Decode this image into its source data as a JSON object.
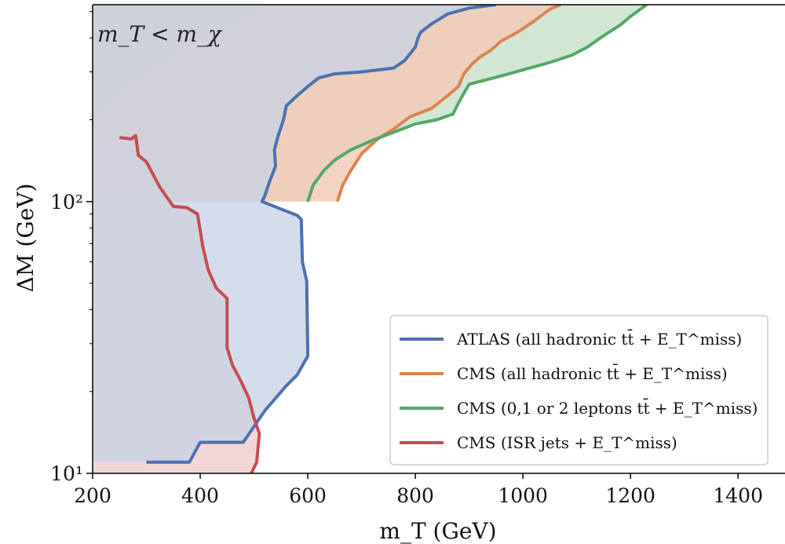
{
  "chart_data": {
    "type": "area",
    "xlabel": "m_T (GeV)",
    "ylabel": "ΔM (GeV)",
    "xlim": [
      200,
      1480
    ],
    "ylim": [
      10,
      530
    ],
    "yscale": "log",
    "x_ticks": [
      200,
      400,
      600,
      800,
      1000,
      1200,
      1400
    ],
    "x_tick_labels": [
      "200",
      "400",
      "600",
      "800",
      "1000",
      "1200",
      "1400"
    ],
    "y_ticks": [
      10,
      100
    ],
    "y_tick_labels": [
      "10¹",
      "10²"
    ],
    "annotation": {
      "text": "m_T < m_χ",
      "fill": "#d3d3d3"
    },
    "legend_placement": "lower-right",
    "grid": false,
    "series": [
      {
        "name": "ATLAS (all hadronic tt̄ + E_T^miss)",
        "color": "#4c72b0",
        "fill": "#c5d1e6",
        "points": [
          [
            300,
            11
          ],
          [
            380,
            11
          ],
          [
            400,
            13
          ],
          [
            480,
            13
          ],
          [
            520,
            17
          ],
          [
            560,
            21
          ],
          [
            580,
            23
          ],
          [
            600,
            27
          ],
          [
            598,
            51
          ],
          [
            590,
            60
          ],
          [
            588,
            86
          ],
          [
            580,
            89
          ],
          [
            515,
            100
          ],
          [
            520,
            105
          ],
          [
            530,
            120
          ],
          [
            540,
            135
          ],
          [
            538,
            155
          ],
          [
            545,
            175
          ],
          [
            555,
            200
          ],
          [
            560,
            225
          ],
          [
            580,
            245
          ],
          [
            600,
            265
          ],
          [
            620,
            285
          ],
          [
            650,
            295
          ],
          [
            700,
            300
          ],
          [
            760,
            310
          ],
          [
            780,
            330
          ],
          [
            800,
            370
          ],
          [
            805,
            400
          ],
          [
            810,
            420
          ],
          [
            830,
            450
          ],
          [
            860,
            490
          ],
          [
            900,
            515
          ],
          [
            950,
            530
          ]
        ]
      },
      {
        "name": "CMS (all hadronic tt̄ + E_T^miss)",
        "color": "#dd8452",
        "fill": "#f4c9b4",
        "points": [
          [
            655,
            100
          ],
          [
            665,
            115
          ],
          [
            680,
            130
          ],
          [
            700,
            150
          ],
          [
            730,
            170
          ],
          [
            760,
            185
          ],
          [
            790,
            205
          ],
          [
            830,
            220
          ],
          [
            860,
            245
          ],
          [
            880,
            265
          ],
          [
            890,
            295
          ],
          [
            905,
            320
          ],
          [
            920,
            340
          ],
          [
            940,
            360
          ],
          [
            960,
            390
          ],
          [
            990,
            420
          ],
          [
            1020,
            460
          ],
          [
            1050,
            510
          ],
          [
            1070,
            530
          ]
        ]
      },
      {
        "name": "CMS (0,1 or 2 leptons tt̄ + E_T^miss)",
        "color": "#55a868",
        "fill": "#c2dfc6",
        "points": [
          [
            600,
            100
          ],
          [
            610,
            115
          ],
          [
            630,
            130
          ],
          [
            650,
            142
          ],
          [
            680,
            155
          ],
          [
            720,
            168
          ],
          [
            760,
            180
          ],
          [
            800,
            193
          ],
          [
            840,
            200
          ],
          [
            870,
            210
          ],
          [
            880,
            230
          ],
          [
            890,
            250
          ],
          [
            900,
            270
          ],
          [
            930,
            280
          ],
          [
            960,
            290
          ],
          [
            1000,
            305
          ],
          [
            1050,
            325
          ],
          [
            1090,
            345
          ],
          [
            1120,
            370
          ],
          [
            1140,
            395
          ],
          [
            1160,
            420
          ],
          [
            1180,
            445
          ],
          [
            1200,
            480
          ],
          [
            1230,
            530
          ]
        ]
      },
      {
        "name": "CMS (ISR jets + E_T^miss)",
        "color": "#c44e52",
        "fill": "#f0c8c8",
        "points": [
          [
            250,
            172
          ],
          [
            272,
            170
          ],
          [
            280,
            175
          ],
          [
            285,
            148
          ],
          [
            300,
            140
          ],
          [
            325,
            113
          ],
          [
            350,
            96
          ],
          [
            375,
            95
          ],
          [
            395,
            90
          ],
          [
            405,
            68
          ],
          [
            415,
            56
          ],
          [
            430,
            48
          ],
          [
            450,
            44
          ],
          [
            450,
            29
          ],
          [
            460,
            25
          ],
          [
            475,
            22
          ],
          [
            490,
            19
          ],
          [
            500,
            16
          ],
          [
            510,
            14
          ],
          [
            505,
            11
          ],
          [
            495,
            10
          ]
        ]
      }
    ]
  }
}
